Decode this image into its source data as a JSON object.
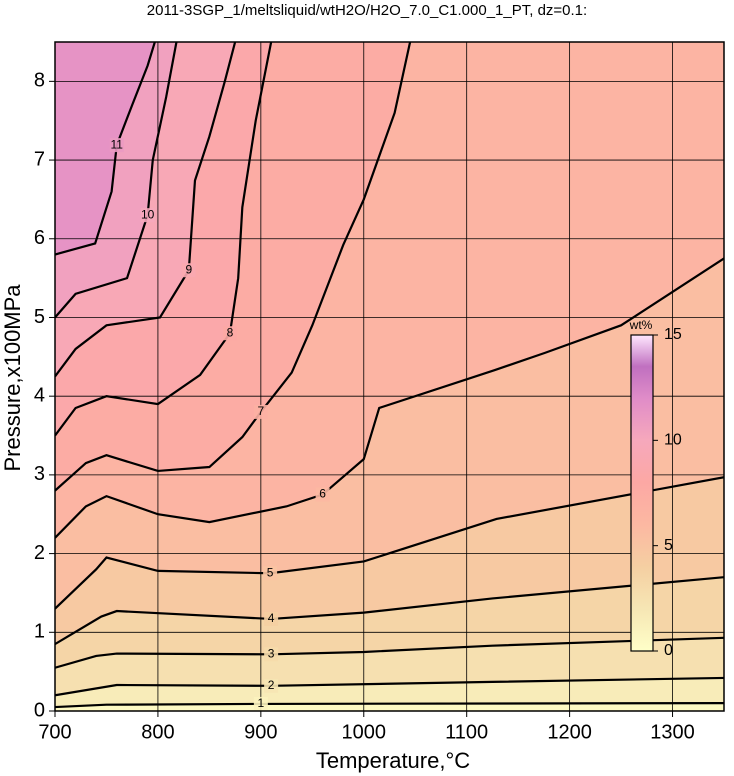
{
  "chart_data": {
    "type": "contour",
    "title": "2011-3SGP_1/meltsliquid/wtH2O/H2O_7.0_C1.000_1_PT, dz=0.1:",
    "x_label": "Temperature,°C",
    "y_label": "Pressure,x100MPa",
    "xlim": [
      700,
      1350
    ],
    "ylim": [
      0,
      8.5
    ],
    "xticks": [
      700,
      800,
      900,
      1000,
      1100,
      1200,
      1300
    ],
    "yticks": [
      0,
      1,
      2,
      3,
      4,
      5,
      6,
      7,
      8
    ],
    "grid": true,
    "contours": [
      {
        "level": 1,
        "x": [
          700,
          750,
          900,
          1350
        ],
        "y": [
          0.05,
          0.08,
          0.09,
          0.1
        ]
      },
      {
        "level": 2,
        "x": [
          700,
          760,
          910,
          1125,
          1350
        ],
        "y": [
          0.2,
          0.33,
          0.32,
          0.37,
          0.42
        ]
      },
      {
        "level": 3,
        "x": [
          700,
          740,
          760,
          910,
          1000,
          1125,
          1350
        ],
        "y": [
          0.55,
          0.7,
          0.73,
          0.72,
          0.75,
          0.83,
          0.93
        ]
      },
      {
        "level": 4,
        "x": [
          700,
          745,
          760,
          910,
          1000,
          1125,
          1350
        ],
        "y": [
          0.85,
          1.2,
          1.27,
          1.17,
          1.25,
          1.43,
          1.7
        ]
      },
      {
        "level": 5,
        "x": [
          700,
          740,
          750,
          800,
          909,
          1000,
          1129,
          1350
        ],
        "y": [
          1.3,
          1.8,
          1.95,
          1.78,
          1.75,
          1.9,
          2.44,
          2.97
        ]
      },
      {
        "level": 6,
        "x": [
          700,
          730,
          750,
          800,
          850,
          925,
          960,
          1000,
          1015,
          1127,
          1176,
          1250,
          1350
        ],
        "y": [
          2.2,
          2.6,
          2.73,
          2.5,
          2.4,
          2.6,
          2.75,
          3.2,
          3.85,
          4.33,
          4.55,
          4.9,
          5.75
        ]
      },
      {
        "level": 7,
        "x": [
          700,
          730,
          750,
          800,
          850,
          882,
          900,
          930,
          950,
          980,
          1000,
          1030,
          1045
        ],
        "y": [
          2.8,
          3.15,
          3.25,
          3.05,
          3.1,
          3.48,
          3.8,
          4.3,
          4.9,
          5.92,
          6.5,
          7.6,
          8.5
        ]
      },
      {
        "level": 8,
        "x": [
          700,
          720,
          750,
          800,
          841,
          870,
          878,
          882,
          895,
          910
        ],
        "y": [
          3.5,
          3.85,
          4.0,
          3.9,
          4.27,
          4.8,
          5.5,
          6.4,
          7.5,
          8.5
        ]
      },
      {
        "level": 9,
        "x": [
          700,
          720,
          750,
          802,
          830,
          836,
          850,
          865,
          875
        ],
        "y": [
          4.25,
          4.6,
          4.9,
          5.0,
          5.6,
          6.74,
          7.3,
          8.0,
          8.5
        ]
      },
      {
        "level": 10,
        "x": [
          700,
          720,
          770,
          790,
          795,
          808,
          818
        ],
        "y": [
          5.0,
          5.3,
          5.5,
          6.3,
          7.0,
          7.8,
          8.5
        ]
      },
      {
        "level": 11,
        "x": [
          700,
          739,
          755,
          760,
          775,
          790,
          797
        ],
        "y": [
          5.8,
          5.94,
          6.6,
          7.19,
          7.7,
          8.2,
          8.5
        ]
      }
    ],
    "colorbar": {
      "label": "wt%",
      "lim": [
        0,
        15
      ],
      "ticks": [
        0,
        5,
        10,
        15
      ],
      "stops": [
        0,
        2,
        4,
        6,
        8,
        10,
        12,
        13.5,
        15
      ],
      "colors": [
        "#ffffc8",
        "#f6e6b4",
        "#f5cfa2",
        "#fcb8a2",
        "#fca8a4",
        "#f6a8bc",
        "#e08cc8",
        "#c070c0",
        "#ffe8ff"
      ]
    }
  }
}
